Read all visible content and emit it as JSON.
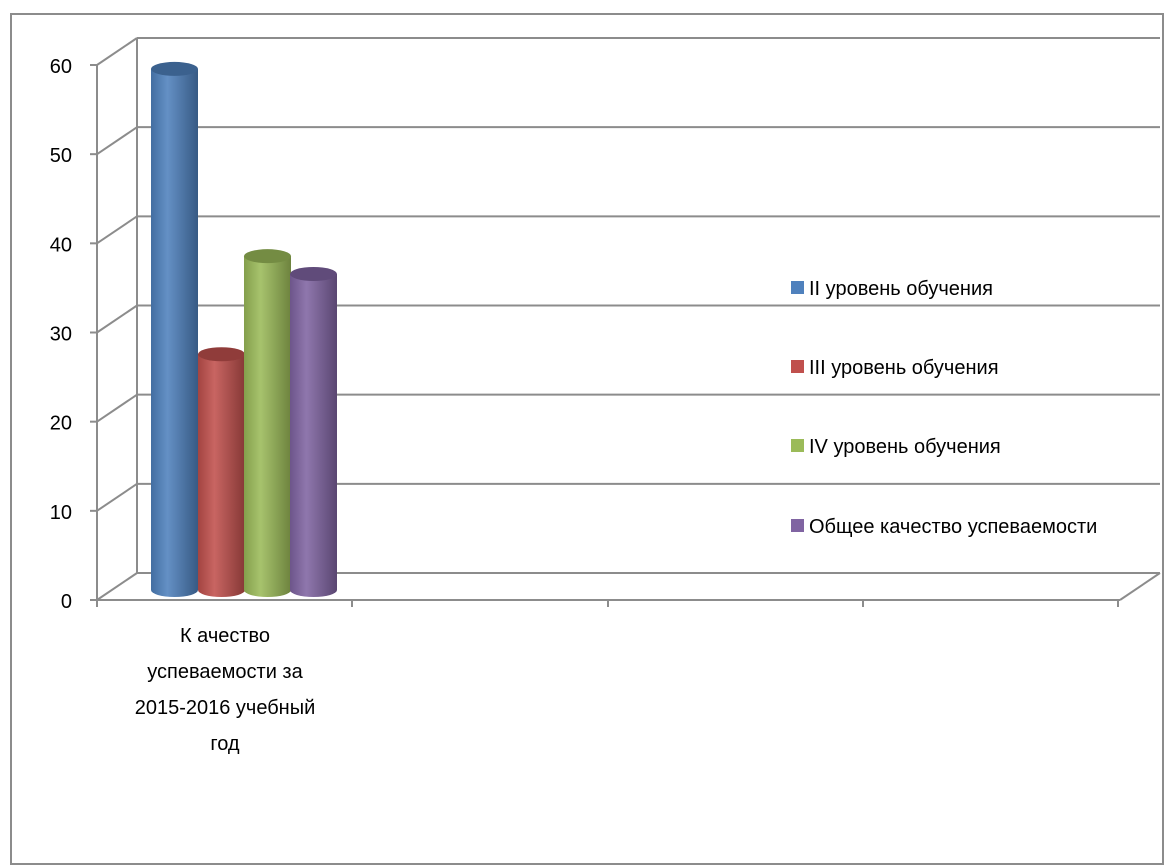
{
  "chart_data": {
    "type": "bar",
    "categories": [
      "К ачество успеваемости за 2015-2016 учебный год"
    ],
    "category_label_lines": [
      "К ачество",
      "успеваемости за",
      "2015-2016 учебный",
      "год"
    ],
    "series": [
      {
        "name": "II уровень обучения",
        "values": [
          59
        ],
        "color": "#4f81bd"
      },
      {
        "name": "III уровень обучения",
        "values": [
          27
        ],
        "color": "#c0504d"
      },
      {
        "name": "IV уровень обучения",
        "values": [
          38
        ],
        "color": "#9bbb59"
      },
      {
        "name": "Общее качество успеваемости",
        "values": [
          36
        ],
        "color": "#8064a2"
      }
    ],
    "ylim": [
      0,
      60
    ],
    "yticks": [
      "0",
      "10",
      "20",
      "30",
      "40",
      "50",
      "60"
    ],
    "grid": true,
    "legend_position": "right",
    "style": "3d-cylinder"
  }
}
